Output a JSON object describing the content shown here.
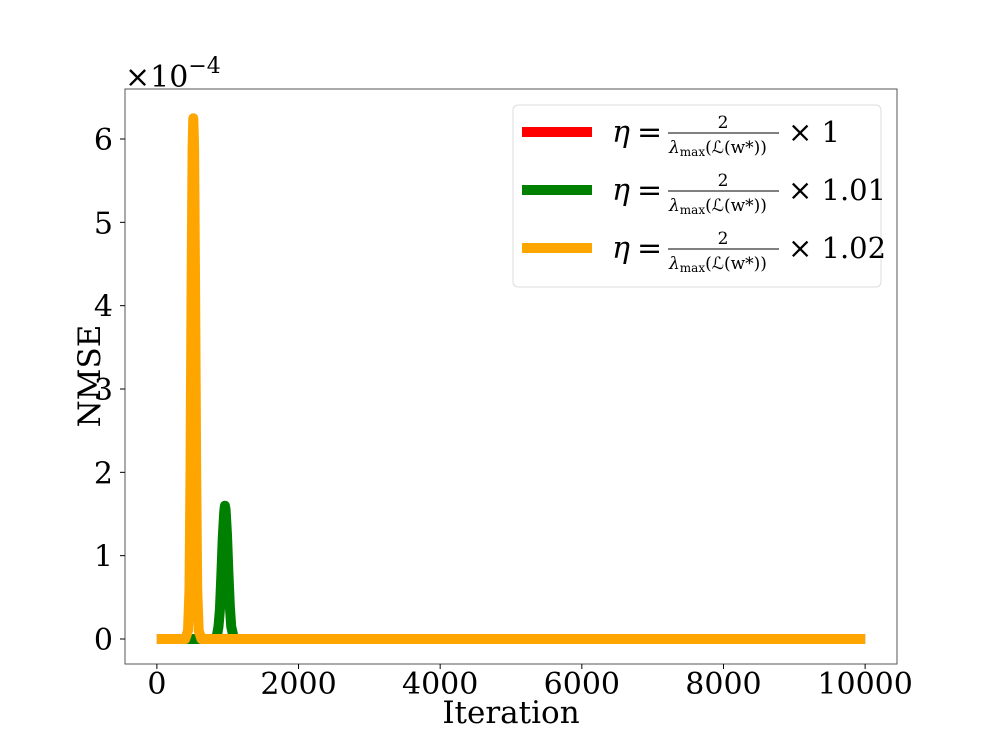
{
  "chart_data": {
    "type": "line",
    "title": "",
    "xlabel": "Iteration",
    "ylabel": "NMSE",
    "xlim": [
      -450,
      10450
    ],
    "ylim": [
      -0.3,
      6.6
    ],
    "y_multiplier_label": "×10",
    "y_multiplier_exponent": "−4",
    "xticks": [
      0,
      2000,
      4000,
      6000,
      8000,
      10000
    ],
    "xtick_labels": [
      "0",
      "2000",
      "4000",
      "6000",
      "8000",
      "10000"
    ],
    "yticks": [
      0,
      1,
      2,
      3,
      4,
      5,
      6
    ],
    "ytick_labels": [
      "0",
      "1",
      "2",
      "3",
      "4",
      "5",
      "6"
    ],
    "grid": false,
    "legend_position": "top-right",
    "series": [
      {
        "legend_suffix": "× 1",
        "color": "#ff0000",
        "x": [
          0,
          500,
          1000,
          10000
        ],
        "y": [
          0,
          0,
          0,
          0
        ]
      },
      {
        "legend_suffix": "× 1.01",
        "color": "#008000",
        "x": [
          0,
          820,
          850,
          870,
          890,
          910,
          930,
          950,
          960,
          970,
          990,
          1010,
          1030,
          1050,
          1080,
          1110,
          10000
        ],
        "y": [
          0,
          0,
          0.05,
          0.15,
          0.35,
          0.75,
          1.2,
          1.52,
          1.6,
          1.55,
          1.25,
          0.8,
          0.4,
          0.15,
          0.03,
          0,
          0
        ]
      },
      {
        "legend_suffix": "× 1.02",
        "color": "#ffa500",
        "x": [
          0,
          400,
          440,
          460,
          475,
          490,
          505,
          515,
          525,
          540,
          555,
          570,
          590,
          630,
          10000
        ],
        "y": [
          0,
          0,
          0.1,
          0.6,
          2.0,
          4.3,
          5.9,
          6.25,
          5.9,
          4.2,
          2.0,
          0.6,
          0.1,
          0,
          0
        ]
      }
    ],
    "legend_formula": {
      "eta": "η",
      "equals": "=",
      "numerator": "2",
      "lambda": "λ",
      "lambda_sub": "max",
      "argument": "(ℒ(w*))"
    }
  }
}
